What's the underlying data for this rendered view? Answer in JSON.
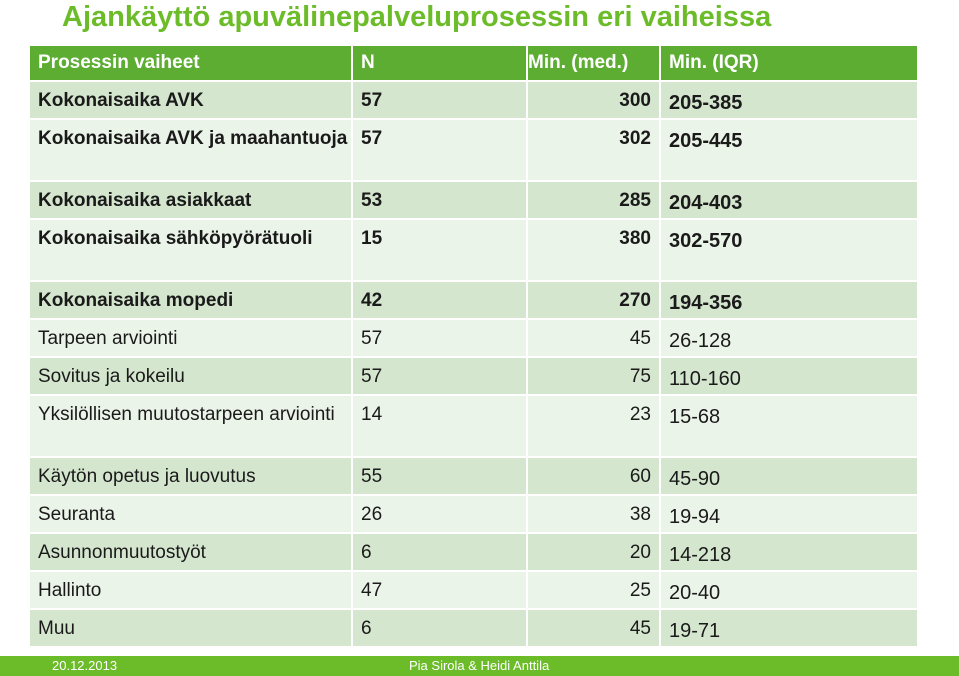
{
  "title": "Ajankäyttö apuvälinepalveluprosessin eri vaiheissa",
  "table": {
    "headers": [
      "Prosessin vaiheet",
      "N",
      "Min.  (med.)",
      "Min. (IQR)"
    ],
    "rows": [
      {
        "phase": "Kokonaisaika AVK",
        "n": "57",
        "median": "300",
        "iqr": "205-385",
        "bold": true
      },
      {
        "phase": "Kokonaisaika  AVK ja maahantuoja",
        "n": "57",
        "median": "302",
        "iqr": "205-445",
        "bold": true
      },
      {
        "phase": "Kokonaisaika asiakkaat",
        "n": "53",
        "median": "285",
        "iqr": "204-403",
        "bold": true
      },
      {
        "phase": "Kokonaisaika sähköpyörätuoli",
        "n": "15",
        "median": "380",
        "iqr": "302-570",
        "bold": true
      },
      {
        "phase": "Kokonaisaika mopedi",
        "n": "42",
        "median": "270",
        "iqr": "194-356",
        "bold": true
      },
      {
        "phase": "Tarpeen arviointi",
        "n": "57",
        "median": "45",
        "iqr": "26-128",
        "bold": false
      },
      {
        "phase": "Sovitus ja kokeilu",
        "n": "57",
        "median": "75",
        "iqr": "110-160",
        "bold": false
      },
      {
        "phase": "Yksilöllisen muutostarpeen arviointi",
        "n": "14",
        "median": "23",
        "iqr": "15-68",
        "bold": false
      },
      {
        "phase": "Käytön opetus ja luovutus",
        "n": "55",
        "median": "60",
        "iqr": "45-90",
        "bold": false
      },
      {
        "phase": "Seuranta",
        "n": "26",
        "median": "38",
        "iqr": "19-94",
        "bold": false
      },
      {
        "phase": "Asunnonmuutostyöt",
        "n": "6",
        "median": "20",
        "iqr": "14-218",
        "bold": false
      },
      {
        "phase": "Hallinto",
        "n": "47",
        "median": "25",
        "iqr": "20-40",
        "bold": false
      },
      {
        "phase": "Muu",
        "n": "6",
        "median": "45",
        "iqr": "19-71",
        "bold": false
      }
    ]
  },
  "footer": {
    "date": "20.12.2013",
    "authors": "Pia Sirola & Heidi Anttila"
  },
  "colors": {
    "accent": "#6cbc2a",
    "header_bg": "#5dad33",
    "row_dark": "#d5e6cf",
    "row_light": "#ebf4e8"
  }
}
